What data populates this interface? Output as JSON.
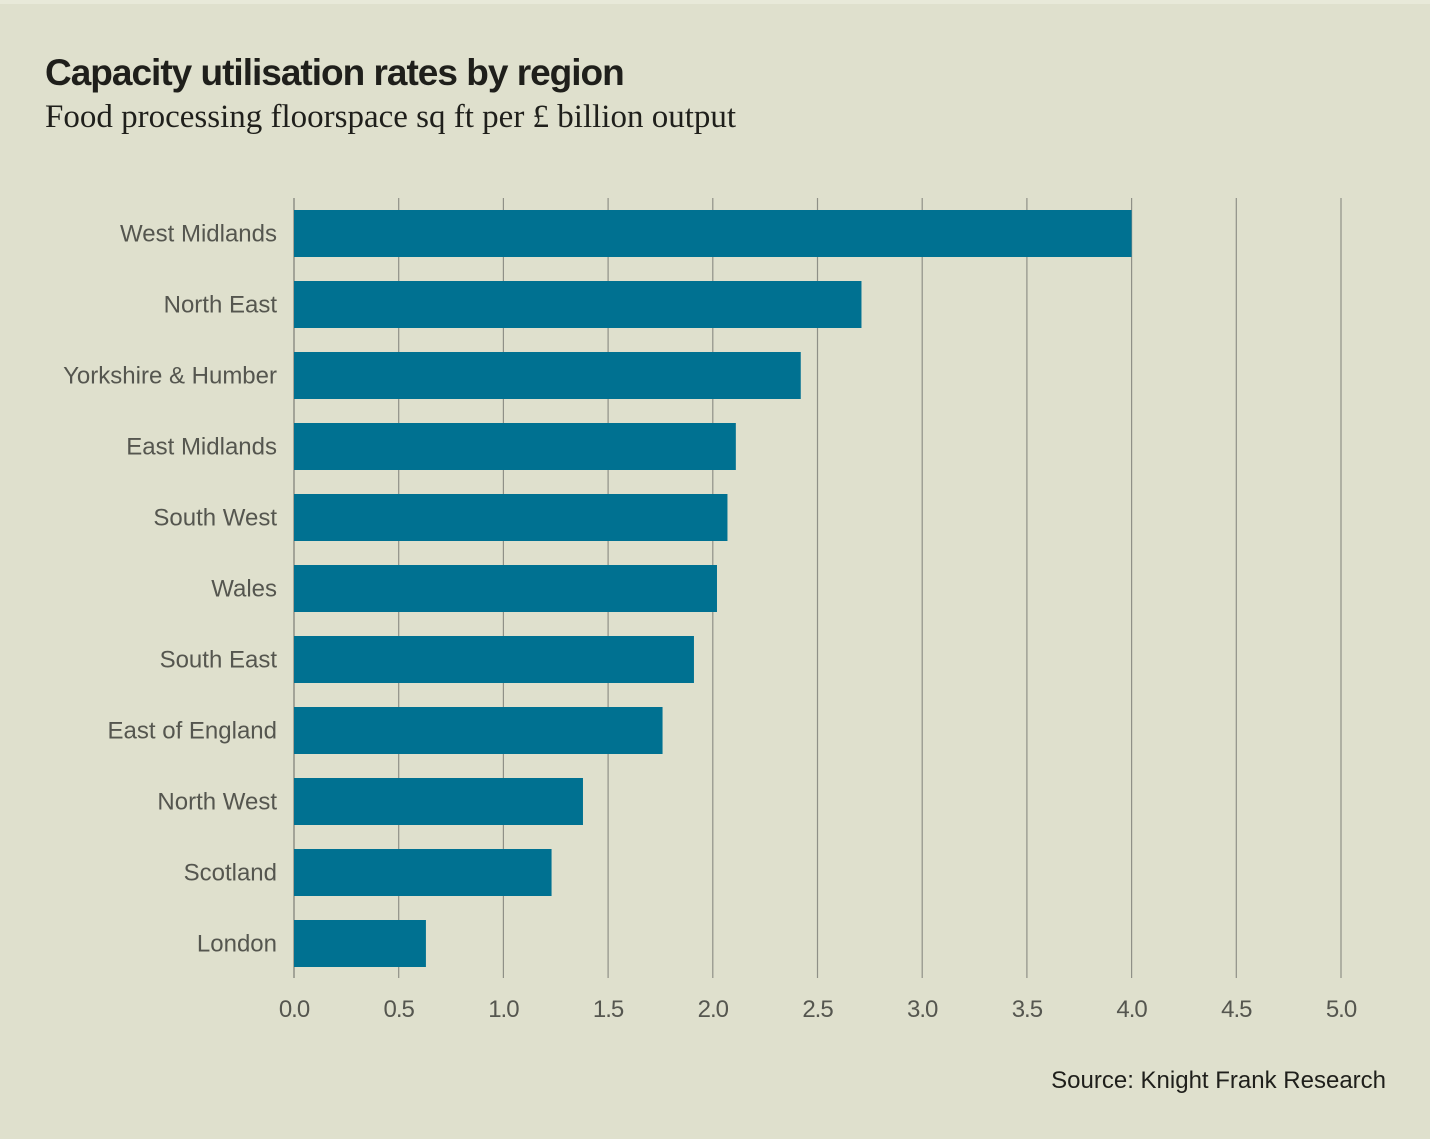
{
  "header": {
    "title": "Capacity utilisation rates by region",
    "subtitle": "Food processing floorspace sq ft per £ billion output"
  },
  "footer": {
    "source": "Source: Knight Frank Research"
  },
  "colors": {
    "bar": "#007191",
    "background": "#dfe0cd",
    "gridline": "#8f9087",
    "label": "#55564f",
    "title": "#1f1f1b"
  },
  "chart_data": {
    "type": "bar",
    "orientation": "horizontal",
    "title": "Capacity utilisation rates by region",
    "subtitle": "Food processing floorspace sq ft per £ billion output",
    "xlabel": "",
    "ylabel": "",
    "categories": [
      "West Midlands",
      "North East",
      "Yorkshire & Humber",
      "East Midlands",
      "South West",
      "Wales",
      "South East",
      "East of England",
      "North West",
      "Scotland",
      "London"
    ],
    "values": [
      4.0,
      2.71,
      2.42,
      2.11,
      2.07,
      2.02,
      1.91,
      1.76,
      1.38,
      1.23,
      0.63
    ],
    "xlim": [
      0,
      5.0
    ],
    "xticks": [
      0.0,
      0.5,
      1.0,
      1.5,
      2.0,
      2.5,
      3.0,
      3.5,
      4.0,
      4.5,
      5.0
    ],
    "xtick_labels": [
      "0.0",
      "0.5",
      "1.0",
      "1.5",
      "2.0",
      "2.5",
      "3.0",
      "3.5",
      "4.0",
      "4.5",
      "5.0"
    ],
    "grid": "vertical",
    "legend": "none",
    "source": "Source: Knight Frank Research"
  }
}
